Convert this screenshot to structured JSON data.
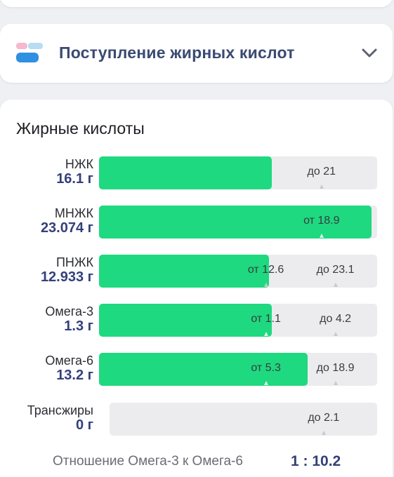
{
  "accordion": {
    "title": "Поступление жирных кислот",
    "icon": "nutrition-bars-icon",
    "chevron": "chevron-down-icon"
  },
  "section": {
    "title": "Жирные кислоты"
  },
  "colors": {
    "fill": "#1ed97f",
    "track": "#ececef",
    "amount": "#33407a",
    "title": "#3a4a72"
  },
  "rows": [
    {
      "name": "НЖК",
      "amount": "16.1 г",
      "fill_ratio": 0.62,
      "min_label": "",
      "max_label": "до 21"
    },
    {
      "name": "МНЖК",
      "amount": "23.074 г",
      "fill_ratio": 0.98,
      "min_label": "от 18.9",
      "max_label": ""
    },
    {
      "name": "ПНЖК",
      "amount": "12.933 г",
      "fill_ratio": 0.61,
      "min_label": "от 12.6",
      "max_label": "до 23.1"
    },
    {
      "name": "Омега-3",
      "amount": "1.3 г",
      "fill_ratio": 0.62,
      "min_label": "от 1.1",
      "max_label": "до 4.2"
    },
    {
      "name": "Омега-6",
      "amount": "13.2 г",
      "fill_ratio": 0.75,
      "min_label": "от 5.3",
      "max_label": "до 18.9"
    },
    {
      "name": "Трансжиры",
      "amount": "0 г",
      "fill_ratio": 0.0,
      "min_label": "",
      "max_label": "до 2.1"
    }
  ],
  "ratio": {
    "label": "Отношение Омега-3 к Омега-6",
    "value": "1 : 10.2"
  }
}
